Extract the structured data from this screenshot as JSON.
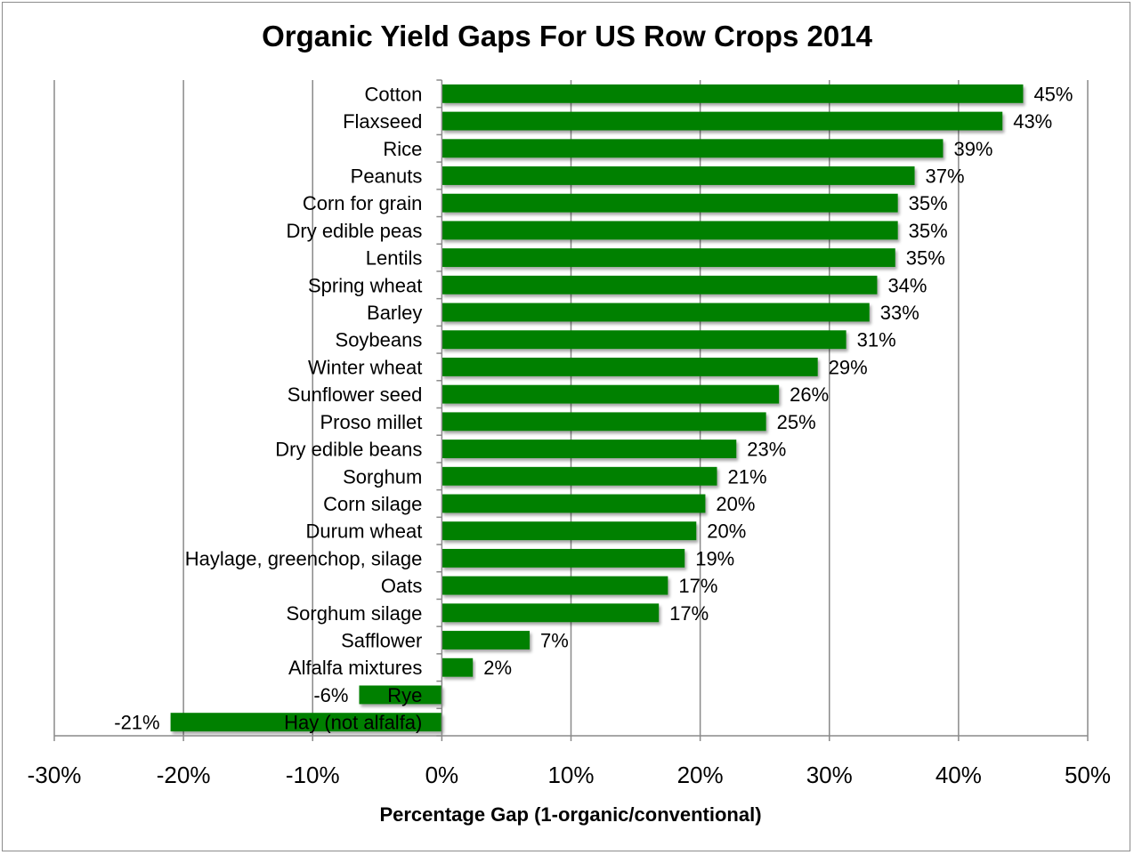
{
  "chart_data": {
    "type": "bar",
    "orientation": "horizontal",
    "title": "Organic Yield Gaps For US Row Crops 2014",
    "xlabel": "Percentage Gap (1-organic/conventional)",
    "ylabel": "",
    "xlim": [
      -30,
      50
    ],
    "x_ticks": [
      -30,
      -20,
      -10,
      0,
      10,
      20,
      30,
      40,
      50
    ],
    "x_tick_labels": [
      "-30%",
      "-20%",
      "-10%",
      "0%",
      "10%",
      "20%",
      "30%",
      "40%",
      "50%"
    ],
    "grid": "vertical",
    "legend": "none",
    "bar_color": "#008000",
    "categories": [
      "Cotton",
      "Flaxseed",
      "Rice",
      "Peanuts",
      "Corn for grain",
      "Dry edible peas",
      "Lentils",
      "Spring wheat",
      "Barley",
      "Soybeans",
      "Winter wheat",
      "Sunflower seed",
      "Proso millet",
      "Dry edible beans",
      "Sorghum",
      "Corn silage",
      "Durum wheat",
      "Haylage, greenchop, silage",
      "Oats",
      "Sorghum silage",
      "Safflower",
      "Alfalfa mixtures",
      "Rye",
      "Hay (not alfalfa)"
    ],
    "values": [
      45,
      43.4,
      38.8,
      36.6,
      35.3,
      35.3,
      35.1,
      33.7,
      33.1,
      31.3,
      29.1,
      26.1,
      25.1,
      22.8,
      21.3,
      20.4,
      19.7,
      18.8,
      17.5,
      16.8,
      6.8,
      2.4,
      -6.4,
      -21
    ],
    "data_labels": [
      "45%",
      "43%",
      "39%",
      "37%",
      "35%",
      "35%",
      "35%",
      "34%",
      "33%",
      "31%",
      "29%",
      "26%",
      "25%",
      "23%",
      "21%",
      "20%",
      "20%",
      "19%",
      "17%",
      "17%",
      "7%",
      "2%",
      "-6%",
      "-21%"
    ]
  }
}
